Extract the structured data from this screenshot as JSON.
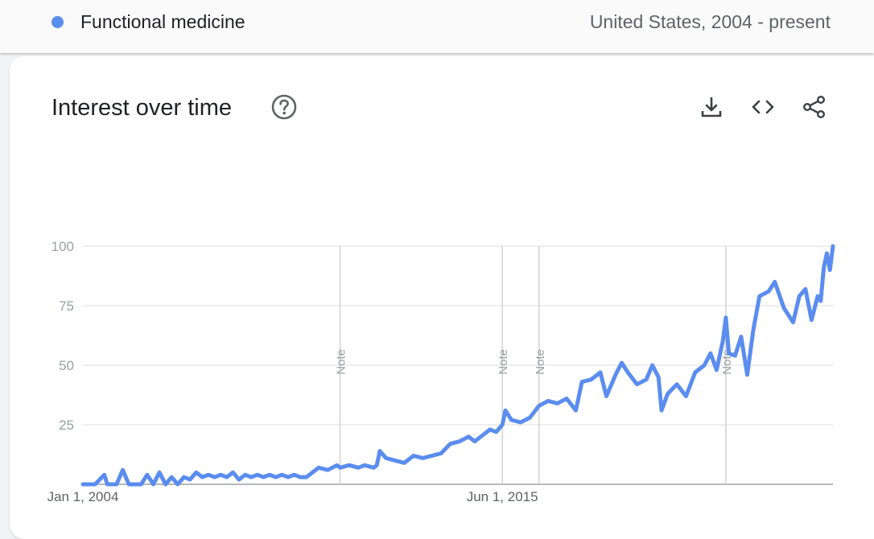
{
  "header": {
    "term": "Functional medicine",
    "term_color": "#5b8def",
    "region": "United States, 2004 - present"
  },
  "card": {
    "title": "Interest over time",
    "icons": [
      "help-icon",
      "download-icon",
      "embed-icon",
      "share-icon"
    ]
  },
  "chart_data": {
    "type": "line",
    "x_start": "2004-01",
    "x_end": "2024-06",
    "x_ticks": [
      "Jan 1, 2004",
      "Jun 1, 2015"
    ],
    "y_ticks": [
      25,
      50,
      75,
      100
    ],
    "ylim": [
      0,
      100
    ],
    "grid": true,
    "line_color": "#5b8def",
    "notes": [
      {
        "label": "Note",
        "date": "2011-01"
      },
      {
        "label": "Note",
        "date": "2015-06"
      },
      {
        "label": "Note",
        "date": "2016-06"
      },
      {
        "label": "Note",
        "date": "2021-07"
      }
    ],
    "series": [
      {
        "points": [
          [
            "2004-01",
            0
          ],
          [
            "2004-05",
            0
          ],
          [
            "2004-08",
            4
          ],
          [
            "2004-09",
            0
          ],
          [
            "2004-12",
            0
          ],
          [
            "2005-02",
            6
          ],
          [
            "2005-04",
            0
          ],
          [
            "2005-08",
            0
          ],
          [
            "2005-10",
            4
          ],
          [
            "2005-12",
            0
          ],
          [
            "2006-02",
            5
          ],
          [
            "2006-04",
            0
          ],
          [
            "2006-06",
            3
          ],
          [
            "2006-08",
            0
          ],
          [
            "2006-10",
            3
          ],
          [
            "2006-12",
            2
          ],
          [
            "2007-02",
            5
          ],
          [
            "2007-04",
            3
          ],
          [
            "2007-06",
            4
          ],
          [
            "2007-08",
            3
          ],
          [
            "2007-10",
            4
          ],
          [
            "2007-12",
            3
          ],
          [
            "2008-02",
            5
          ],
          [
            "2008-04",
            2
          ],
          [
            "2008-06",
            4
          ],
          [
            "2008-08",
            3
          ],
          [
            "2008-10",
            4
          ],
          [
            "2008-12",
            3
          ],
          [
            "2009-02",
            4
          ],
          [
            "2009-04",
            3
          ],
          [
            "2009-06",
            4
          ],
          [
            "2009-08",
            3
          ],
          [
            "2009-10",
            4
          ],
          [
            "2009-12",
            3
          ],
          [
            "2010-02",
            3
          ],
          [
            "2010-06",
            7
          ],
          [
            "2010-09",
            6
          ],
          [
            "2010-12",
            8
          ],
          [
            "2011-01",
            7
          ],
          [
            "2011-04",
            8
          ],
          [
            "2011-07",
            7
          ],
          [
            "2011-09",
            8
          ],
          [
            "2011-12",
            7
          ],
          [
            "2012-01",
            8
          ],
          [
            "2012-02",
            14
          ],
          [
            "2012-04",
            11
          ],
          [
            "2012-07",
            10
          ],
          [
            "2012-10",
            9
          ],
          [
            "2013-01",
            12
          ],
          [
            "2013-04",
            11
          ],
          [
            "2013-07",
            12
          ],
          [
            "2013-10",
            13
          ],
          [
            "2014-01",
            17
          ],
          [
            "2014-04",
            18
          ],
          [
            "2014-07",
            20
          ],
          [
            "2014-09",
            18
          ],
          [
            "2014-12",
            21
          ],
          [
            "2015-02",
            23
          ],
          [
            "2015-04",
            22
          ],
          [
            "2015-06",
            25
          ],
          [
            "2015-07",
            31
          ],
          [
            "2015-09",
            27
          ],
          [
            "2015-12",
            26
          ],
          [
            "2016-03",
            28
          ],
          [
            "2016-06",
            33
          ],
          [
            "2016-09",
            35
          ],
          [
            "2016-12",
            34
          ],
          [
            "2017-03",
            36
          ],
          [
            "2017-06",
            31
          ],
          [
            "2017-08",
            43
          ],
          [
            "2017-11",
            44
          ],
          [
            "2018-02",
            47
          ],
          [
            "2018-04",
            37
          ],
          [
            "2018-07",
            46
          ],
          [
            "2018-09",
            51
          ],
          [
            "2018-11",
            47
          ],
          [
            "2019-02",
            42
          ],
          [
            "2019-05",
            44
          ],
          [
            "2019-07",
            50
          ],
          [
            "2019-09",
            45
          ],
          [
            "2019-10",
            31
          ],
          [
            "2019-12",
            38
          ],
          [
            "2020-03",
            42
          ],
          [
            "2020-06",
            37
          ],
          [
            "2020-09",
            47
          ],
          [
            "2020-12",
            50
          ],
          [
            "2021-02",
            55
          ],
          [
            "2021-04",
            48
          ],
          [
            "2021-06",
            60
          ],
          [
            "2021-07",
            70
          ],
          [
            "2021-08",
            55
          ],
          [
            "2021-10",
            54
          ],
          [
            "2021-12",
            62
          ],
          [
            "2022-02",
            46
          ],
          [
            "2022-04",
            65
          ],
          [
            "2022-06",
            79
          ],
          [
            "2022-09",
            81
          ],
          [
            "2022-11",
            85
          ],
          [
            "2023-02",
            74
          ],
          [
            "2023-05",
            68
          ],
          [
            "2023-07",
            79
          ],
          [
            "2023-09",
            82
          ],
          [
            "2023-11",
            69
          ],
          [
            "2024-01",
            79
          ],
          [
            "2024-02",
            77
          ],
          [
            "2024-03",
            91
          ],
          [
            "2024-04",
            97
          ],
          [
            "2024-05",
            90
          ],
          [
            "2024-06",
            100
          ]
        ]
      }
    ]
  }
}
